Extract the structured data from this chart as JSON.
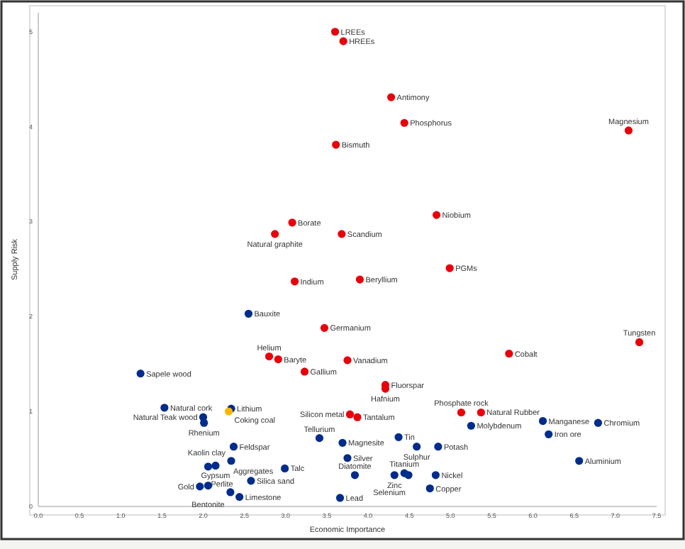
{
  "chart_data": {
    "type": "scatter",
    "xlabel": "Economic Importance",
    "ylabel": "Supply Risk",
    "xlim": [
      0,
      7.5
    ],
    "ylim": [
      0,
      5.2
    ],
    "xticks": [
      {
        "value": 0,
        "label": "0.0"
      },
      {
        "value": 0.5,
        "label": "0.5"
      },
      {
        "value": 1,
        "label": "1.0"
      },
      {
        "value": 1.5,
        "label": "1.5"
      },
      {
        "value": 2,
        "label": "2.0"
      },
      {
        "value": 2.5,
        "label": "2.5"
      },
      {
        "value": 3,
        "label": "3.0"
      },
      {
        "value": 3.5,
        "label": "3.5"
      },
      {
        "value": 4,
        "label": "4.0"
      },
      {
        "value": 4.5,
        "label": "4.5"
      },
      {
        "value": 5,
        "label": "5.0"
      },
      {
        "value": 5.5,
        "label": "5.5"
      },
      {
        "value": 6,
        "label": "6.0"
      },
      {
        "value": 6.5,
        "label": "6.5"
      },
      {
        "value": 7,
        "label": "7.0"
      },
      {
        "value": 7.5,
        "label": "7.5"
      }
    ],
    "yticks": [
      0,
      1,
      2,
      3,
      4,
      5
    ],
    "marker": "circle",
    "series": [
      {
        "color": "#e8000b",
        "x": [
          3.6,
          3.7,
          4.28,
          4.44,
          7.16,
          3.61,
          3.08,
          2.87,
          3.68,
          4.83,
          4.99,
          3.11,
          3.9,
          3.47,
          2.8,
          2.91,
          3.75,
          3.23,
          5.71,
          7.29,
          4.21,
          4.21,
          3.78,
          3.87,
          5.13,
          5.37
        ],
        "values": [
          5.0,
          4.9,
          4.31,
          4.04,
          3.96,
          3.81,
          2.99,
          2.87,
          2.87,
          3.07,
          2.51,
          2.37,
          2.39,
          1.88,
          1.58,
          1.55,
          1.54,
          1.42,
          1.61,
          1.73,
          1.28,
          1.24,
          0.97,
          0.94,
          0.99,
          0.99
        ]
      },
      {
        "color": "#002c8c",
        "x": [
          2.55,
          1.24,
          1.53,
          2.34,
          2.0,
          2.01,
          2.37,
          2.34,
          2.15,
          2.06,
          2.99,
          2.06,
          1.96,
          2.58,
          2.33,
          2.44,
          3.41,
          3.69,
          3.75,
          3.84,
          3.66,
          4.37,
          4.59,
          4.85,
          5.25,
          6.12,
          6.79,
          6.19,
          6.56,
          4.32,
          4.44,
          4.49,
          4.82,
          4.75
        ],
        "values": [
          2.03,
          1.4,
          1.04,
          1.03,
          0.94,
          0.88,
          0.63,
          0.48,
          0.43,
          0.42,
          0.4,
          0.22,
          0.21,
          0.27,
          0.15,
          0.1,
          0.72,
          0.67,
          0.51,
          0.33,
          0.09,
          0.73,
          0.63,
          0.63,
          0.85,
          0.9,
          0.88,
          0.76,
          0.48,
          0.33,
          0.35,
          0.33,
          0.33,
          0.19
        ]
      },
      {
        "color": "#f5b800",
        "x": [
          2.31
        ],
        "values": [
          1.0
        ]
      }
    ],
    "annotations": [
      {
        "text": "LREEs",
        "x": 3.6,
        "y": 5.0
      },
      {
        "text": "HREEs",
        "x": 3.7,
        "y": 4.9
      },
      {
        "text": "Antimony",
        "x": 4.28,
        "y": 4.31
      },
      {
        "text": "Phosphorus",
        "x": 4.44,
        "y": 4.04
      },
      {
        "text": "Magnesium",
        "x": 7.16,
        "y": 3.96
      },
      {
        "text": "Bismuth",
        "x": 3.61,
        "y": 3.81
      },
      {
        "text": "Borate",
        "x": 3.08,
        "y": 2.99
      },
      {
        "text": "Natural graphite",
        "x": 2.87,
        "y": 2.87
      },
      {
        "text": "Scandium",
        "x": 3.68,
        "y": 2.87
      },
      {
        "text": "Niobium",
        "x": 4.83,
        "y": 3.07
      },
      {
        "text": "PGMs",
        "x": 4.99,
        "y": 2.51
      },
      {
        "text": "Indium",
        "x": 3.11,
        "y": 2.37
      },
      {
        "text": "Beryllium",
        "x": 3.9,
        "y": 2.39
      },
      {
        "text": "Germanium",
        "x": 3.47,
        "y": 1.88
      },
      {
        "text": "Helium",
        "x": 2.8,
        "y": 1.58
      },
      {
        "text": "Baryte",
        "x": 2.91,
        "y": 1.55
      },
      {
        "text": "Vanadium",
        "x": 3.75,
        "y": 1.54
      },
      {
        "text": "Gallium",
        "x": 3.23,
        "y": 1.42
      },
      {
        "text": "Cobalt",
        "x": 5.71,
        "y": 1.61
      },
      {
        "text": "Tungsten",
        "x": 7.29,
        "y": 1.73
      },
      {
        "text": "Fluorspar",
        "x": 4.21,
        "y": 1.28
      },
      {
        "text": "Hafnium",
        "x": 4.21,
        "y": 1.24
      },
      {
        "text": "Silicon metal",
        "x": 3.78,
        "y": 0.97
      },
      {
        "text": "Tantalum",
        "x": 3.87,
        "y": 0.94
      },
      {
        "text": "Phosphate rock",
        "x": 5.13,
        "y": 0.99
      },
      {
        "text": "Natural Rubber",
        "x": 5.37,
        "y": 0.99
      },
      {
        "text": "Bauxite",
        "x": 2.55,
        "y": 2.03
      },
      {
        "text": "Sapele wood",
        "x": 1.24,
        "y": 1.4
      },
      {
        "text": "Natural cork",
        "x": 1.53,
        "y": 1.04
      },
      {
        "text": "Lithium",
        "x": 2.34,
        "y": 1.03
      },
      {
        "text": "Coking coal",
        "x": 2.31,
        "y": 1.0
      },
      {
        "text": "Natural Teak wood",
        "x": 2.0,
        "y": 0.94
      },
      {
        "text": "Rhenium",
        "x": 2.01,
        "y": 0.88
      },
      {
        "text": "Feldspar",
        "x": 2.37,
        "y": 0.63
      },
      {
        "text": "Kaolin clay",
        "x": 2.34,
        "y": 0.48
      },
      {
        "text": "Gypsum",
        "x": 2.15,
        "y": 0.43
      },
      {
        "text": "Perlite",
        "x": 2.06,
        "y": 0.42
      },
      {
        "text": "Talc",
        "x": 2.99,
        "y": 0.4
      },
      {
        "text": "Bentonite",
        "x": 2.06,
        "y": 0.22
      },
      {
        "text": "Gold",
        "x": 1.96,
        "y": 0.21
      },
      {
        "text": "Silica sand",
        "x": 2.58,
        "y": 0.27
      },
      {
        "text": "Aggregates",
        "x": 2.33,
        "y": 0.15
      },
      {
        "text": "Limestone",
        "x": 2.44,
        "y": 0.1
      },
      {
        "text": "Tellurium",
        "x": 3.41,
        "y": 0.72
      },
      {
        "text": "Magnesite",
        "x": 3.69,
        "y": 0.67
      },
      {
        "text": "Silver",
        "x": 3.75,
        "y": 0.51
      },
      {
        "text": "Diatomite",
        "x": 3.84,
        "y": 0.33
      },
      {
        "text": "Lead",
        "x": 3.66,
        "y": 0.09
      },
      {
        "text": "Tin",
        "x": 4.37,
        "y": 0.73
      },
      {
        "text": "Sulphur",
        "x": 4.59,
        "y": 0.63
      },
      {
        "text": "Potash",
        "x": 4.85,
        "y": 0.63
      },
      {
        "text": "Molybdenum",
        "x": 5.25,
        "y": 0.85
      },
      {
        "text": "Manganese",
        "x": 6.12,
        "y": 0.9
      },
      {
        "text": "Chromium",
        "x": 6.79,
        "y": 0.88
      },
      {
        "text": "Iron ore",
        "x": 6.19,
        "y": 0.76
      },
      {
        "text": "Aluminium",
        "x": 6.56,
        "y": 0.48
      },
      {
        "text": "Zinc",
        "x": 4.32,
        "y": 0.33
      },
      {
        "text": "Titanium",
        "x": 4.44,
        "y": 0.35
      },
      {
        "text": "Selenium",
        "x": 4.49,
        "y": 0.33
      },
      {
        "text": "Nickel",
        "x": 4.82,
        "y": 0.33
      },
      {
        "text": "Copper",
        "x": 4.75,
        "y": 0.19
      }
    ]
  }
}
